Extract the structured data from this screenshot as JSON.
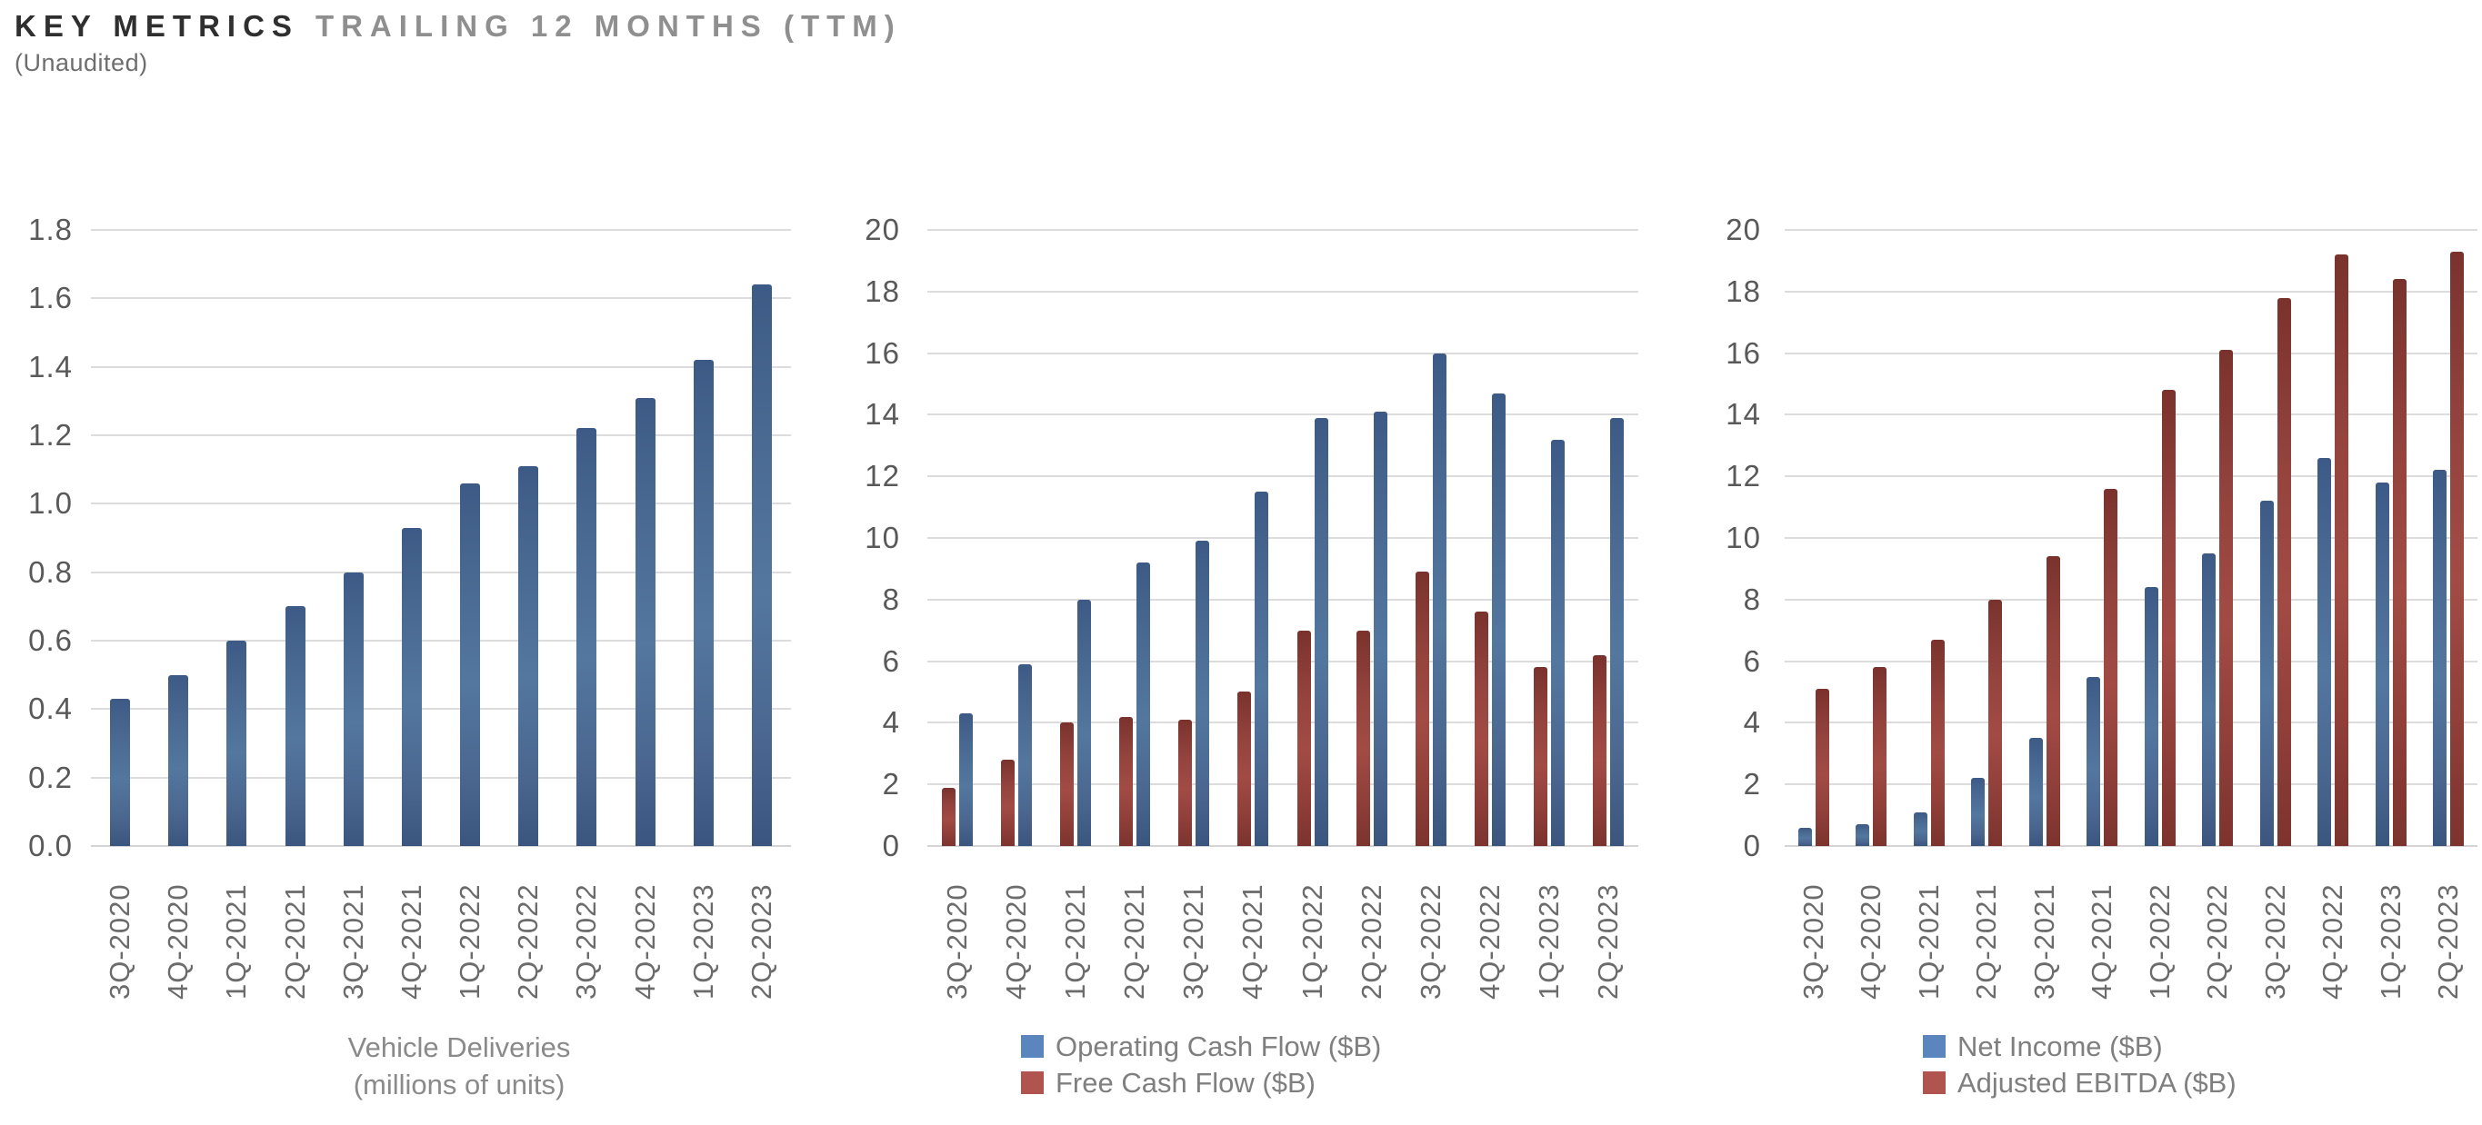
{
  "header": {
    "title_primary": "KEY METRICS",
    "title_secondary": "TRAILING 12 MONTHS (TTM)",
    "subtitle": "(Unaudited)"
  },
  "colors": {
    "blue": "#4a6d9b",
    "red": "#9a4540",
    "legend_blue": "#5b86bd",
    "legend_red": "#b15450",
    "grid": "#dcdcdc",
    "tick_text": "#595959",
    "xlabel_text": "#6b6b6b",
    "caption_text": "#8a8a8a"
  },
  "chart_data": [
    {
      "type": "bar",
      "title": "Vehicle Deliveries (millions of units)",
      "caption": [
        "Vehicle Deliveries",
        "(millions of units)"
      ],
      "categories": [
        "3Q-2020",
        "4Q-2020",
        "1Q-2021",
        "2Q-2021",
        "3Q-2021",
        "4Q-2021",
        "1Q-2022",
        "2Q-2022",
        "3Q-2022",
        "4Q-2022",
        "1Q-2023",
        "2Q-2023"
      ],
      "series": [
        {
          "name": "Vehicle Deliveries (millions of units)",
          "color": "blue",
          "values": [
            0.43,
            0.5,
            0.6,
            0.7,
            0.8,
            0.93,
            1.06,
            1.11,
            1.22,
            1.31,
            1.42,
            1.64
          ]
        }
      ],
      "ylim": [
        0,
        1.8
      ],
      "ytick_step": 0.2,
      "ytick_decimals": 1,
      "grid": true,
      "legend_position": "bottom-caption"
    },
    {
      "type": "bar",
      "title": "Operating Cash Flow and Free Cash Flow ($B)",
      "categories": [
        "3Q-2020",
        "4Q-2020",
        "1Q-2021",
        "2Q-2021",
        "3Q-2021",
        "4Q-2021",
        "1Q-2022",
        "2Q-2022",
        "3Q-2022",
        "4Q-2022",
        "1Q-2023",
        "2Q-2023"
      ],
      "series": [
        {
          "name": "Free Cash Flow ($B)",
          "color": "red",
          "values": [
            1.9,
            2.8,
            4.0,
            4.2,
            4.1,
            5.0,
            7.0,
            7.0,
            8.9,
            7.6,
            5.8,
            6.2
          ]
        },
        {
          "name": "Operating Cash Flow ($B)",
          "color": "blue",
          "values": [
            4.3,
            5.9,
            8.0,
            9.2,
            9.9,
            11.5,
            13.9,
            14.1,
            16.0,
            14.7,
            13.2,
            13.9
          ]
        }
      ],
      "legend": [
        {
          "label": "Operating Cash Flow ($B)",
          "color": "blue"
        },
        {
          "label": "Free Cash Flow ($B)",
          "color": "red"
        }
      ],
      "ylim": [
        0,
        20
      ],
      "ytick_step": 2,
      "ytick_decimals": 0,
      "grid": true,
      "legend_position": "bottom-left"
    },
    {
      "type": "bar",
      "title": "Net Income and Adjusted EBITDA ($B)",
      "categories": [
        "3Q-2020",
        "4Q-2020",
        "1Q-2021",
        "2Q-2021",
        "3Q-2021",
        "4Q-2021",
        "1Q-2022",
        "2Q-2022",
        "3Q-2022",
        "4Q-2022",
        "1Q-2023",
        "2Q-2023"
      ],
      "series": [
        {
          "name": "Net Income ($B)",
          "color": "blue",
          "values": [
            0.6,
            0.7,
            1.1,
            2.2,
            3.5,
            5.5,
            8.4,
            9.5,
            11.2,
            12.6,
            11.8,
            12.2
          ]
        },
        {
          "name": "Adjusted EBITDA ($B)",
          "color": "red",
          "values": [
            5.1,
            5.8,
            6.7,
            8.0,
            9.4,
            11.6,
            14.8,
            16.1,
            17.8,
            19.2,
            18.4,
            19.3
          ]
        }
      ],
      "legend": [
        {
          "label": "Net Income ($B)",
          "color": "blue"
        },
        {
          "label": "Adjusted EBITDA ($B)",
          "color": "red"
        }
      ],
      "ylim": [
        0,
        20
      ],
      "ytick_step": 2,
      "ytick_decimals": 0,
      "grid": true,
      "legend_position": "bottom-left"
    }
  ]
}
